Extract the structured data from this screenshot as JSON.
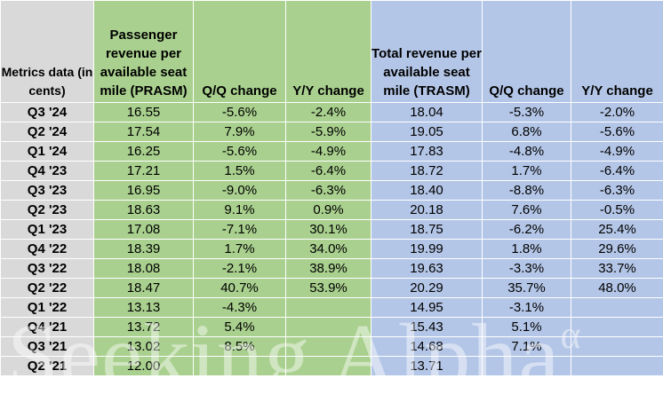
{
  "chart_data": {
    "type": "table",
    "columns": [
      "Metrics data (in cents)",
      "Passenger revenue per available seat mile (PRASM)",
      "Q/Q change",
      "Y/Y change",
      "Total revenue per available seat mile (TRASM)",
      "Q/Q change",
      "Y/Y change"
    ],
    "rows": [
      [
        "Q3 '24",
        "16.55",
        "-5.6%",
        "-2.4%",
        "18.04",
        "-5.3%",
        "-2.0%"
      ],
      [
        "Q2 '24",
        "17.54",
        "7.9%",
        "-5.9%",
        "19.05",
        "6.8%",
        "-5.6%"
      ],
      [
        "Q1 '24",
        "16.25",
        "-5.6%",
        "-4.9%",
        "17.83",
        "-4.8%",
        "-4.9%"
      ],
      [
        "Q4 '23",
        "17.21",
        "1.5%",
        "-6.4%",
        "18.72",
        "1.7%",
        "-6.4%"
      ],
      [
        "Q3 '23",
        "16.95",
        "-9.0%",
        "-6.3%",
        "18.40",
        "-8.8%",
        "-6.3%"
      ],
      [
        "Q2 '23",
        "18.63",
        "9.1%",
        "0.9%",
        "20.18",
        "7.6%",
        "-0.5%"
      ],
      [
        "Q1 '23",
        "17.08",
        "-7.1%",
        "30.1%",
        "18.75",
        "-6.2%",
        "25.4%"
      ],
      [
        "Q4 '22",
        "18.39",
        "1.7%",
        "34.0%",
        "19.99",
        "1.8%",
        "29.6%"
      ],
      [
        "Q3 '22",
        "18.08",
        "-2.1%",
        "38.9%",
        "19.63",
        "-3.3%",
        "33.7%"
      ],
      [
        "Q2 '22",
        "18.47",
        "40.7%",
        "53.9%",
        "20.29",
        "35.7%",
        "48.0%"
      ],
      [
        "Q1 '22",
        "13.13",
        "-4.3%",
        "",
        "14.95",
        "-3.1%",
        ""
      ],
      [
        "Q4 '21",
        "13.72",
        "5.4%",
        "",
        "15.43",
        "5.1%",
        ""
      ],
      [
        "Q3 '21",
        "13.02",
        "8.5%",
        "",
        "14.68",
        "7.1%",
        ""
      ],
      [
        "Q2 '21",
        "12.00",
        "",
        "",
        "13.71",
        "",
        ""
      ]
    ],
    "column_colors": [
      "#d9d9d9",
      "#a9d08e",
      "#a9d08e",
      "#a9d08e",
      "#b4c6e7",
      "#b4c6e7",
      "#b4c6e7"
    ],
    "watermark": "Seeking Alpha",
    "watermark_mark": "α"
  }
}
